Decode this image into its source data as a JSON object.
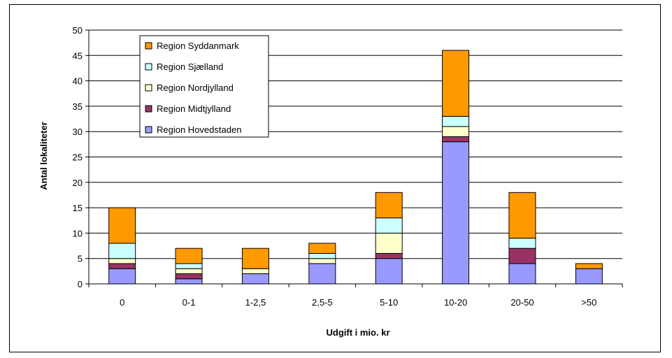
{
  "chart_data": {
    "type": "bar",
    "stacked": true,
    "xlabel": "Udgift i mio. kr",
    "ylabel": "Antal lokaliteter",
    "ylim": [
      0,
      50
    ],
    "yticks": [
      0,
      5,
      10,
      15,
      20,
      25,
      30,
      35,
      40,
      45,
      50
    ],
    "grid": true,
    "legend_position": "top-left",
    "categories": [
      "0",
      "0-1",
      "1-2,5",
      "2,5-5",
      "5-10",
      "10-20",
      "20-50",
      ">50"
    ],
    "series": [
      {
        "name": "Region Hovedstaden",
        "color": "#9999ff",
        "values": [
          3,
          1,
          2,
          4,
          5,
          28,
          4,
          3
        ]
      },
      {
        "name": "Region Midtjylland",
        "color": "#993366",
        "values": [
          1,
          1,
          0,
          0,
          1,
          1,
          3,
          0
        ]
      },
      {
        "name": "Region Nordjylland",
        "color": "#ffffcc",
        "values": [
          1,
          1,
          1,
          1,
          4,
          2,
          0,
          0
        ]
      },
      {
        "name": "Region Sjælland",
        "color": "#ccffff",
        "values": [
          3,
          1,
          0,
          1,
          3,
          2,
          2,
          0
        ]
      },
      {
        "name": "Region Syddanmark",
        "color": "#ff9900",
        "values": [
          7,
          3,
          4,
          2,
          5,
          13,
          9,
          1
        ]
      }
    ]
  }
}
